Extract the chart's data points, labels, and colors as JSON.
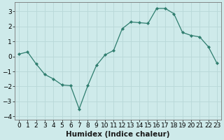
{
  "x": [
    0,
    1,
    2,
    3,
    4,
    5,
    6,
    7,
    8,
    9,
    10,
    11,
    12,
    13,
    14,
    15,
    16,
    17,
    18,
    19,
    20,
    21,
    22,
    23
  ],
  "y": [
    0.15,
    0.3,
    -0.5,
    -1.2,
    -1.5,
    -1.9,
    -1.95,
    -3.5,
    -1.95,
    -0.6,
    0.1,
    0.4,
    1.85,
    2.3,
    2.25,
    2.2,
    3.2,
    3.2,
    2.85,
    1.6,
    1.4,
    1.3,
    0.65,
    -0.45
  ],
  "line_color": "#2e7d6e",
  "marker": "D",
  "marker_size": 2.2,
  "bg_color": "#ceeaea",
  "grid_color": "#b8d8d8",
  "xlabel": "Humidex (Indice chaleur)",
  "ylim": [
    -4.2,
    3.6
  ],
  "xlim": [
    -0.5,
    23.5
  ],
  "yticks": [
    -4,
    -3,
    -2,
    -1,
    0,
    1,
    2,
    3
  ],
  "xtick_labels": [
    "0",
    "1",
    "2",
    "3",
    "4",
    "5",
    "6",
    "7",
    "8",
    "9",
    "10",
    "11",
    "12",
    "13",
    "14",
    "15",
    "16",
    "17",
    "18",
    "19",
    "20",
    "21",
    "22",
    "23"
  ],
  "tick_fontsize": 6.5,
  "xlabel_fontsize": 7.5
}
